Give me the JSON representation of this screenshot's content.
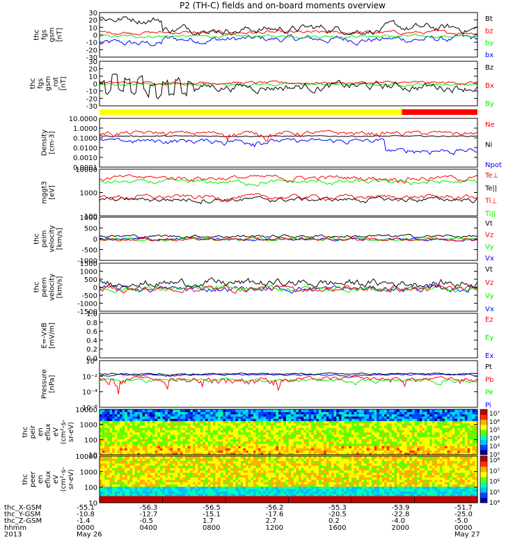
{
  "title": "P2 (TH-C) fields and on-board moments overview",
  "colors": {
    "black": "#000000",
    "red": "#ff0000",
    "green": "#00ee00",
    "blue": "#0000ff",
    "yellow": "#ffff00"
  },
  "chart_data": [
    {
      "id": "fgs_gsm",
      "type": "line",
      "ylabel": [
        "thc",
        "fgs",
        "gsm",
        "[nT]"
      ],
      "yticks": [
        30,
        20,
        10,
        0,
        -10,
        -20,
        -30
      ],
      "ylim": [
        -30,
        30
      ],
      "log": false,
      "legend": [
        {
          "name": "Bt",
          "color": "black"
        },
        {
          "name": "bz",
          "color": "red"
        },
        {
          "name": "by",
          "color": "green"
        },
        {
          "name": "bx",
          "color": "blue"
        }
      ]
    },
    {
      "id": "fgs_gsm_rot",
      "type": "line",
      "ylabel": [
        "thc",
        "fgs",
        "gsm",
        "_rot",
        "[nT]"
      ],
      "yticks": [
        30,
        20,
        10,
        0,
        -10,
        -20,
        -30
      ],
      "ylim": [
        -30,
        30
      ],
      "log": false,
      "legend": [
        {
          "name": "Bz",
          "color": "black"
        },
        {
          "name": "Bx",
          "color": "red"
        },
        {
          "name": "By",
          "color": "green"
        }
      ]
    },
    {
      "id": "mode_bar",
      "type": "bar",
      "segments": [
        {
          "from": 0.0,
          "to": 0.8,
          "color": "yellow"
        },
        {
          "from": 0.8,
          "to": 1.0,
          "color": "red"
        }
      ]
    },
    {
      "id": "density",
      "type": "line",
      "ylabel": [
        "Density",
        "[cm-3]"
      ],
      "yticks": [
        "10.0000",
        "1.0000",
        "0.1000",
        "0.0100",
        "0.0010",
        "0.0001"
      ],
      "ylim": [
        0.0001,
        10
      ],
      "log": true,
      "legend": [
        {
          "name": "Ne",
          "color": "red"
        },
        {
          "name": "Ni",
          "color": "black"
        },
        {
          "name": "Npot",
          "color": "blue"
        }
      ]
    },
    {
      "id": "temperature",
      "type": "line",
      "ylabel": [
        "mggt3",
        "[eV]"
      ],
      "yticks": [
        "10000",
        "1000",
        "100"
      ],
      "ylim": [
        20,
        10000
      ],
      "log": true,
      "legend": [
        {
          "name": "Te⊥",
          "color": "red"
        },
        {
          "name": "Te||",
          "color": "black"
        },
        {
          "name": "Ti⊥",
          "color": "red"
        },
        {
          "name": "Ti||",
          "color": "green"
        }
      ]
    },
    {
      "id": "peim_velocity",
      "type": "line",
      "ylabel": [
        "thc",
        "peim",
        "velocity",
        "[km/s]"
      ],
      "yticks": [
        1000,
        500,
        0,
        -500,
        -1000
      ],
      "ylim": [
        -1000,
        1000
      ],
      "log": false,
      "legend": [
        {
          "name": "Vt",
          "color": "black"
        },
        {
          "name": "Vz",
          "color": "red"
        },
        {
          "name": "Vy",
          "color": "green"
        },
        {
          "name": "Vx",
          "color": "blue"
        }
      ]
    },
    {
      "id": "peem_velocity",
      "type": "line",
      "ylabel": [
        "thc",
        "peem",
        "velocity",
        "[km/s]"
      ],
      "yticks": [
        1500,
        1000,
        500,
        0,
        -500,
        -1000,
        -1500
      ],
      "ylim": [
        -1500,
        1500
      ],
      "log": false,
      "legend": [
        {
          "name": "Vt",
          "color": "black"
        },
        {
          "name": "Vz",
          "color": "red"
        },
        {
          "name": "Vy",
          "color": "green"
        },
        {
          "name": "Vx",
          "color": "blue"
        }
      ]
    },
    {
      "id": "efield",
      "type": "line",
      "ylabel": [
        "E=-VxB",
        "[mV/m]"
      ],
      "yticks": [
        "1.0",
        "0.8",
        "0.6",
        "0.4",
        "0.2",
        "0.0"
      ],
      "ylim": [
        0,
        1
      ],
      "log": false,
      "legend": [
        {
          "name": "Ez",
          "color": "red"
        },
        {
          "name": "Ey",
          "color": "green"
        },
        {
          "name": "Ex",
          "color": "blue"
        }
      ]
    },
    {
      "id": "pressure",
      "type": "line",
      "ylabel": [
        "Pressure",
        "[nPa]"
      ],
      "yticks": [
        "10⁰",
        "10⁻²",
        "10⁻⁴",
        "10⁻⁶"
      ],
      "ylim": [
        1e-06,
        1
      ],
      "log": true,
      "legend": [
        {
          "name": "Pt",
          "color": "black"
        },
        {
          "name": "Pb",
          "color": "red"
        },
        {
          "name": "Pe",
          "color": "green"
        },
        {
          "name": "Pi",
          "color": "blue"
        }
      ]
    },
    {
      "id": "peir_spec",
      "type": "heatmap",
      "ylabel": [
        "thc",
        "peir",
        "en",
        "eflux",
        "eV",
        "(cm²-s-",
        "sr-eV)"
      ],
      "yticks": [
        10000,
        1000,
        100,
        10
      ],
      "ylim": [
        10,
        20000
      ],
      "log": true,
      "colorbar": [
        "10⁷",
        "10⁶",
        "10⁵",
        "10⁴",
        "10³",
        "10²"
      ]
    },
    {
      "id": "peer_spec",
      "type": "heatmap",
      "ylabel": [
        "thc",
        "peer",
        "en",
        "eflux",
        "eV",
        "(cm²-s-",
        "sr-eV)"
      ],
      "yticks": [
        10000,
        1000,
        100,
        10
      ],
      "ylim": [
        10,
        20000
      ],
      "log": true,
      "colorbar": [
        "10⁸",
        "10⁷",
        "10⁶",
        "10⁵",
        "10⁴"
      ]
    }
  ],
  "xaxis": {
    "row_labels": [
      "thc_X-GSM",
      "thc_Y-GSM",
      "thc_Z-GSM",
      "hhmm",
      "2013"
    ],
    "columns": [
      {
        "x": "-55.1",
        "y": "-10.8",
        "z": "-1.4",
        "hhmm": "0000",
        "date": "May 26"
      },
      {
        "x": "-56.3",
        "y": "-12.7",
        "z": "-0.5",
        "hhmm": "0400",
        "date": ""
      },
      {
        "x": "-56.5",
        "y": "-15.1",
        "z": "1.7",
        "hhmm": "0800",
        "date": ""
      },
      {
        "x": "-56.2",
        "y": "-17.6",
        "z": "2.7",
        "hhmm": "1200",
        "date": ""
      },
      {
        "x": "-55.3",
        "y": "-20.5",
        "z": "0.2",
        "hhmm": "1600",
        "date": ""
      },
      {
        "x": "-53.9",
        "y": "-22.8",
        "z": "-4.0",
        "hhmm": "2000",
        "date": ""
      },
      {
        "x": "-51.7",
        "y": "-25.0",
        "z": "-5.0",
        "hhmm": "0000",
        "date": "May 27"
      }
    ]
  }
}
